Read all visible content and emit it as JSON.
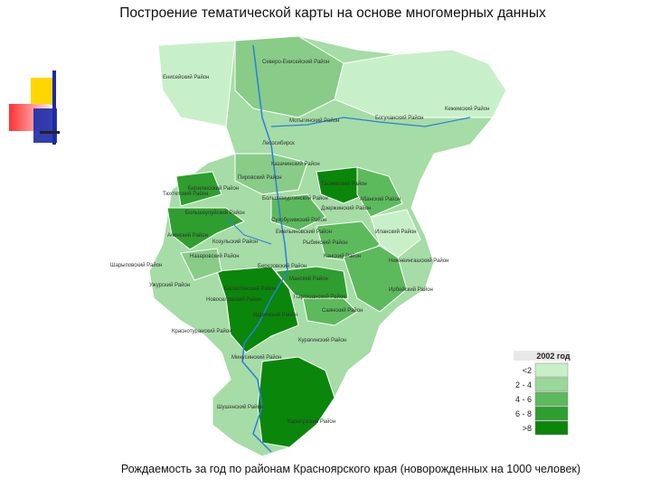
{
  "title": "Построение тематической карты на основе многомерных данных",
  "caption": "Рождаемость за год по районам Красноярского края (новорожденных на 1000 человек)",
  "legend": {
    "title": "2002 год",
    "items": [
      {
        "label": "<2",
        "color": "#c8f0c8"
      },
      {
        "label": "2 - 4",
        "color": "#9ad89a"
      },
      {
        "label": "4 - 6",
        "color": "#5cba5c"
      },
      {
        "label": "6 - 8",
        "color": "#2e9e2e"
      },
      {
        "label": ">8",
        "color": "#0a860a"
      }
    ]
  },
  "districts": [
    "Северо-Енисейский Район",
    "Енисейский Район",
    "Мотыгинский Район",
    "Богучанский Район",
    "Кежемский Район",
    "Лесосибирск",
    "Казачинский Район",
    "Пировский Район",
    "Бирилюсский Район",
    "Тюхтетский Район",
    "Большемуртинский Район",
    "Тасеевский Район",
    "Абанский Район",
    "Большеулуйский Район",
    "Сухобузимский Район",
    "Дзержинский Район",
    "Емельяновский Район",
    "Ачинский Район",
    "Козульский Район",
    "Иланский Район",
    "Назаровский Район",
    "Рыбинский Район",
    "Нижнеингашский Район",
    "Шарыповский Район",
    "Березовский Район",
    "Канский Район",
    "Ужурский Район",
    "Манский Район",
    "Ирбейский Район",
    "Балахтинский Район",
    "Партизанский Район",
    "Новоселовский Район",
    "Саянский Район",
    "Идринский Район",
    "Краснотуранский Район",
    "Курагинский Район",
    "Минусинский Район",
    "Шушенский Район",
    "Каратузский Район"
  ]
}
